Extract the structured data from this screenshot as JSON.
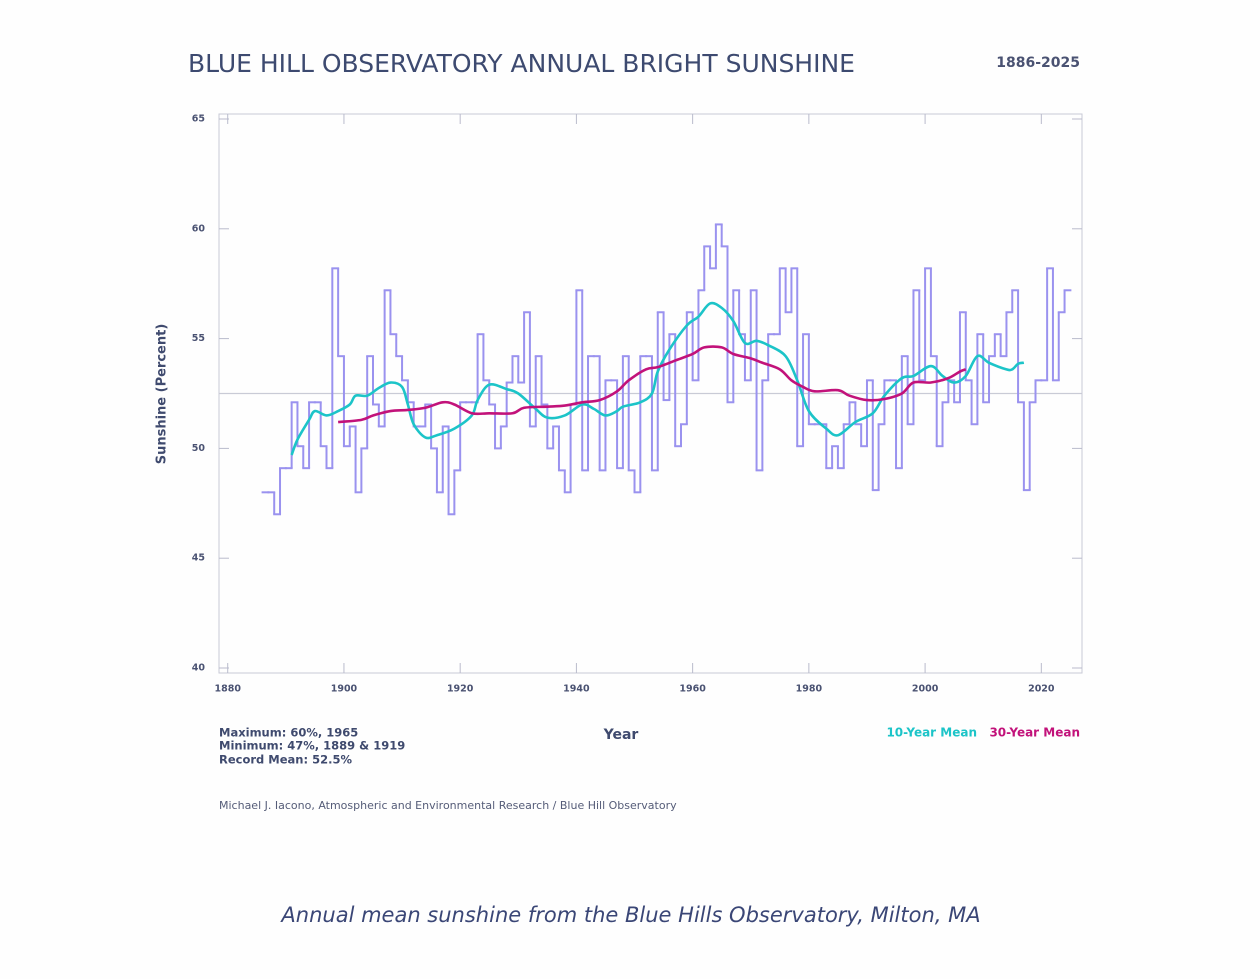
{
  "chart_data": {
    "type": "line",
    "step": true,
    "title": "BLUE HILL OBSERVATORY ANNUAL BRIGHT SUNSHINE",
    "subtitle": "1886-2025",
    "xlabel": "Year",
    "ylabel": "Sunshine (Percent)",
    "annotations": [
      "Maximum: 60%, 1965",
      "Minimum: 47%, 1889 & 1919",
      "Record Mean: 52.5%"
    ],
    "credit": "Michael J. Iacono, Atmospheric and Environmental Research / Blue Hill Observatory",
    "caption": "Annual mean sunshine from the Blue Hills Observatory, Milton, MA",
    "reference_line": 52.5,
    "color": "#9a92ef",
    "x": [
      1887,
      1888,
      1889,
      1890,
      1891,
      1892,
      1893,
      1894,
      1895,
      1896,
      1897,
      1898,
      1899,
      1900,
      1901,
      1902,
      1903,
      1904,
      1905,
      1906,
      1907,
      1908,
      1909,
      1910,
      1911,
      1912,
      1913,
      1914,
      1915,
      1916,
      1917,
      1918,
      1919,
      1920,
      1921,
      1922,
      1923,
      1924,
      1925,
      1926,
      1927,
      1928,
      1929,
      1930,
      1931,
      1932,
      1933,
      1934,
      1935,
      1936,
      1937,
      1938,
      1939,
      1940,
      1941,
      1942,
      1943,
      1944,
      1945,
      1946,
      1947,
      1948,
      1949,
      1950,
      1951,
      1952,
      1953,
      1954,
      1955,
      1956,
      1957,
      1958,
      1959,
      1960,
      1961,
      1962,
      1963,
      1964,
      1965,
      1966,
      1967,
      1968,
      1969,
      1970,
      1971,
      1972,
      1973,
      1974,
      1975,
      1976,
      1977,
      1978,
      1979,
      1980,
      1981,
      1982,
      1983,
      1984,
      1985,
      1986,
      1987,
      1988,
      1989,
      1990,
      1991,
      1992,
      1993,
      1994,
      1995,
      1996,
      1997,
      1998,
      1999,
      2000,
      2001,
      2002,
      2003,
      2004,
      2005,
      2006,
      2007,
      2008,
      2009,
      2010,
      2011,
      2012,
      2013,
      2014,
      2015,
      2016,
      2017,
      2018,
      2019,
      2020,
      2021,
      2022,
      2023,
      2024,
      2025
    ],
    "values": [
      48.0,
      48.0,
      47.0,
      49.1,
      49.1,
      52.1,
      50.1,
      49.1,
      52.1,
      52.1,
      50.1,
      49.1,
      58.2,
      54.2,
      50.1,
      51.0,
      48.0,
      50.0,
      54.2,
      52.0,
      51.0,
      57.2,
      55.2,
      54.2,
      53.1,
      52.1,
      51.0,
      51.0,
      52.0,
      50.0,
      48.0,
      51.0,
      47.0,
      49.0,
      52.1,
      52.1,
      52.1,
      55.2,
      53.1,
      52.0,
      50.0,
      51.0,
      53.0,
      54.2,
      53.0,
      56.2,
      51.0,
      54.2,
      52.0,
      50.0,
      51.0,
      49.0,
      48.0,
      52.0,
      57.2,
      49.0,
      54.2,
      54.2,
      49.0,
      53.1,
      53.1,
      49.1,
      54.2,
      49.0,
      48.0,
      54.2,
      54.2,
      49.0,
      56.2,
      52.2,
      55.2,
      50.1,
      51.1,
      56.2,
      53.1,
      57.2,
      59.2,
      58.2,
      60.2,
      59.2,
      52.1,
      57.2,
      55.2,
      53.1,
      57.2,
      49.0,
      53.1,
      55.2,
      55.2,
      58.2,
      56.2,
      58.2,
      50.1,
      55.2,
      51.1,
      51.1,
      51.1,
      49.1,
      50.1,
      49.1,
      51.1,
      52.1,
      51.1,
      50.1,
      53.1,
      48.1,
      51.1,
      53.1,
      53.1,
      49.1,
      54.2,
      51.1,
      57.2,
      53.1,
      58.2,
      54.2,
      50.1,
      52.1,
      53.1,
      52.1,
      56.2,
      53.1,
      51.1,
      55.2,
      52.1,
      54.2,
      55.2,
      54.2,
      56.2,
      57.2,
      52.1,
      48.1,
      52.1,
      53.1,
      53.1,
      58.2,
      53.1,
      56.2,
      57.2
    ],
    "series": [
      {
        "name": "10-Year Mean",
        "color": "#1cc4c8",
        "x": [
          1891,
          1892,
          1894,
          1895,
          1897,
          1899,
          1901,
          1902,
          1904,
          1906,
          1908,
          1910,
          1911,
          1912,
          1914,
          1916,
          1919,
          1922,
          1923,
          1925,
          1928,
          1930,
          1933,
          1935,
          1938,
          1941,
          1943,
          1945,
          1947,
          1948,
          1951,
          1953,
          1954,
          1956,
          1959,
          1961,
          1963,
          1965,
          1967,
          1969,
          1971,
          1973,
          1976,
          1978,
          1980,
          1983,
          1985,
          1988,
          1991,
          1993,
          1996,
          1998,
          2001,
          2003,
          2005,
          2007,
          2009,
          2011,
          2014,
          2015,
          2016,
          2017
        ],
        "values": [
          49.7,
          50.4,
          51.3,
          51.7,
          51.5,
          51.7,
          52.0,
          52.4,
          52.4,
          52.75,
          53.0,
          52.8,
          52.0,
          51.1,
          50.5,
          50.6,
          50.9,
          51.5,
          52.2,
          52.9,
          52.7,
          52.5,
          51.8,
          51.4,
          51.5,
          52.0,
          51.8,
          51.5,
          51.7,
          51.9,
          52.1,
          52.5,
          53.5,
          54.5,
          55.6,
          56.0,
          56.6,
          56.4,
          55.8,
          54.8,
          54.9,
          54.7,
          54.2,
          53.1,
          51.7,
          50.9,
          50.6,
          51.2,
          51.6,
          52.4,
          53.2,
          53.3,
          53.75,
          53.3,
          53.0,
          53.3,
          54.2,
          53.9,
          53.6,
          53.6,
          53.85,
          53.9
        ]
      },
      {
        "name": "30-Year Mean",
        "color": "#c2127a",
        "x": [
          1899,
          1903,
          1905,
          1908,
          1911,
          1914,
          1917,
          1919,
          1922,
          1925,
          1929,
          1931,
          1935,
          1938,
          1941,
          1944,
          1947,
          1949,
          1952,
          1954,
          1957,
          1960,
          1962,
          1965,
          1967,
          1970,
          1972,
          1975,
          1977,
          1979,
          1981,
          1985,
          1987,
          1990,
          1993,
          1996,
          1998,
          2001,
          2004,
          2006,
          2007
        ],
        "values": [
          51.2,
          51.3,
          51.5,
          51.7,
          51.75,
          51.85,
          52.1,
          52.0,
          51.6,
          51.6,
          51.6,
          51.85,
          51.9,
          51.95,
          52.1,
          52.2,
          52.6,
          53.1,
          53.6,
          53.7,
          54.0,
          54.3,
          54.6,
          54.6,
          54.3,
          54.1,
          53.9,
          53.6,
          53.1,
          52.8,
          52.6,
          52.65,
          52.4,
          52.2,
          52.25,
          52.5,
          53.0,
          53.0,
          53.2,
          53.5,
          53.6
        ]
      }
    ],
    "xlim": [
      1878.5,
      2027
    ],
    "ylim": [
      40,
      65
    ],
    "xticks": [
      1880,
      1900,
      1920,
      1940,
      1960,
      1980,
      2000,
      2020
    ],
    "yticks": [
      40,
      45,
      50,
      55,
      60,
      65
    ]
  }
}
